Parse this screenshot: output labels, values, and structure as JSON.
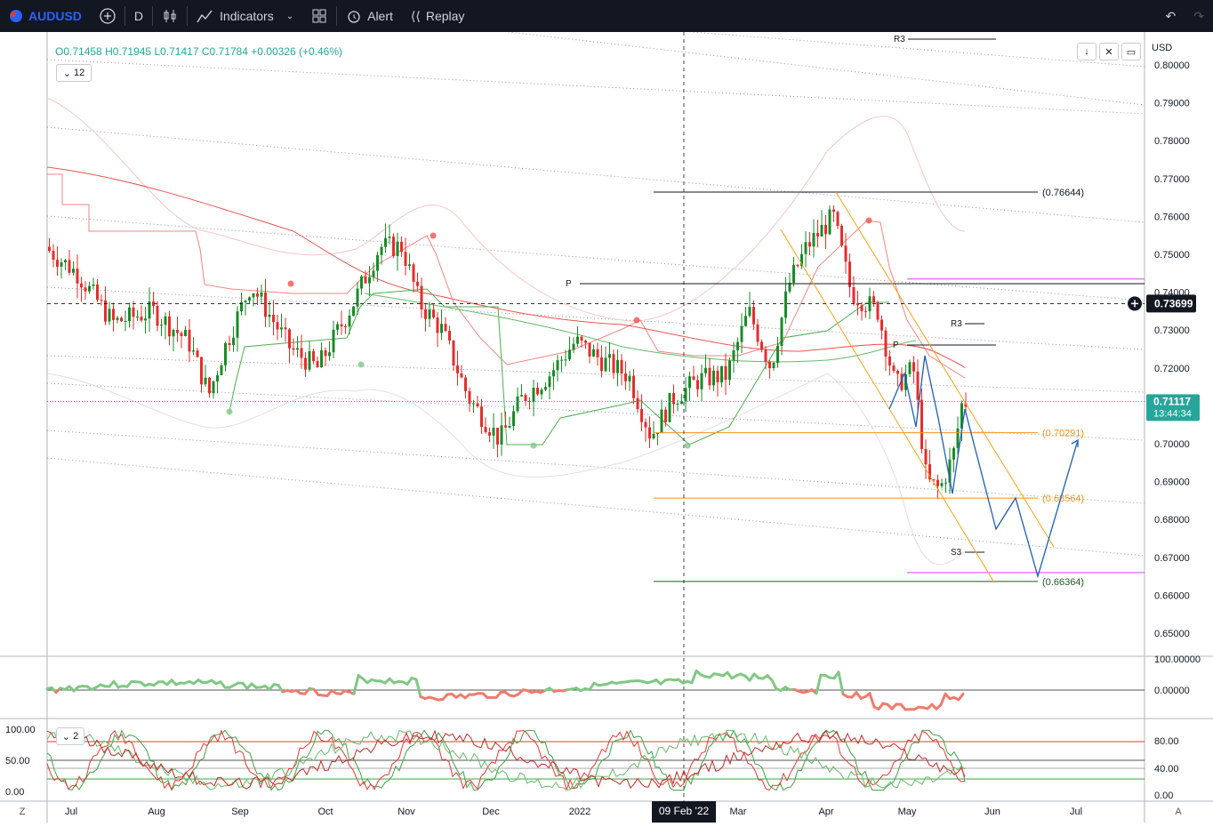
{
  "toolbar": {
    "symbol": "AUDUSD",
    "interval": "D",
    "indicators_label": "Indicators",
    "alert_label": "Alert",
    "replay_label": "Replay"
  },
  "ohlc": {
    "open": "O0.71458",
    "high": "H0.71945",
    "low": "L0.71417",
    "close": "C0.71784",
    "change": "+0.00326 (+0.46%)"
  },
  "pane1_badge": "12",
  "pane3_badge": "2",
  "currency_label": "USD",
  "crosshair_date": "09 Feb '22",
  "price_tag": {
    "value": "0.71117",
    "countdown": "13:44:34",
    "color": "#26a69a"
  },
  "crosshair_price": "0.73699",
  "scale_bottom_left": "Z",
  "scale_bottom_right": "A",
  "chart_data": {
    "type": "candlestick",
    "title": "AUDUSD Daily",
    "y_axis": {
      "ylim": [
        0.642,
        0.806
      ],
      "ticks": [
        "0.80000",
        "0.79000",
        "0.78000",
        "0.77000",
        "0.76000",
        "0.75000",
        "0.74000",
        "0.73000",
        "0.72000",
        "0.71000",
        "0.70000",
        "0.69000",
        "0.68000",
        "0.67000",
        "0.66000",
        "0.65000"
      ]
    },
    "x_axis": {
      "ticks": [
        "Jul",
        "Aug",
        "Sep",
        "Oct",
        "Nov",
        "Dec",
        "2022",
        "Mar",
        "Apr",
        "May",
        "Jun",
        "Jul"
      ]
    },
    "close_series_anchor": [
      {
        "month": "Jul",
        "close": 0.752
      },
      {
        "month": "Aug",
        "close": 0.735
      },
      {
        "month": "Aug-end",
        "close": 0.713
      },
      {
        "month": "Sep",
        "close": 0.742
      },
      {
        "month": "Oct",
        "close": 0.721
      },
      {
        "month": "Nov",
        "close": 0.752
      },
      {
        "month": "Dec",
        "close": 0.701
      },
      {
        "month": "Dec-mid",
        "close": 0.718
      },
      {
        "month": "2022",
        "close": 0.727
      },
      {
        "month": "Jan-end",
        "close": 0.701
      },
      {
        "month": "Feb",
        "close": 0.717
      },
      {
        "month": "Mar",
        "close": 0.735
      },
      {
        "month": "Apr",
        "close": 0.76
      },
      {
        "month": "Apr-end",
        "close": 0.721
      },
      {
        "month": "May",
        "close": 0.688
      },
      {
        "month": "May-end",
        "close": 0.711
      }
    ],
    "fibonacci_levels": [
      {
        "label": "(0.76644)",
        "value": 0.76644,
        "color": "#131722"
      },
      {
        "label": "(0.70291)",
        "value": 0.70291,
        "color": "#f7931a"
      },
      {
        "label": "(0.68564)",
        "value": 0.68564,
        "color": "#f7931a"
      },
      {
        "label": "(0.66364)",
        "value": 0.66364,
        "color": "#1b5e20"
      }
    ],
    "pivot_labels": [
      {
        "label": "R3",
        "value": 0.8055
      },
      {
        "label": "P",
        "value": 0.7425
      },
      {
        "label": "R3",
        "value": 0.7316
      },
      {
        "label": "P",
        "value": 0.7258
      },
      {
        "label": "S3",
        "value": 0.6715
      }
    ],
    "magenta_levels": [
      0.7435,
      0.666
    ],
    "current_price": 0.71117,
    "crosshair_price": 0.73699,
    "oscillator_1": {
      "ticks": [
        "100.00000",
        "0.00000"
      ]
    },
    "oscillator_2": {
      "left_ticks": [
        "100.00",
        "50.00",
        "0.00"
      ],
      "right_ticks": [
        "80.00",
        "40.00",
        "0.00"
      ],
      "levels": [
        80,
        50,
        20
      ]
    }
  }
}
